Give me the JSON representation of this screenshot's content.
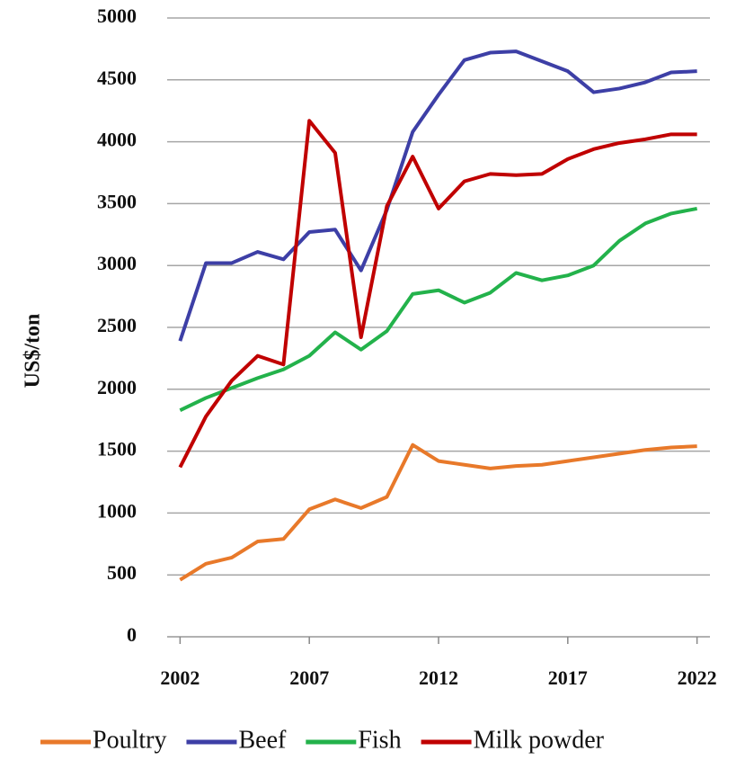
{
  "chart_data": {
    "type": "line",
    "y_label": "US$/ton",
    "x": [
      2002,
      2003,
      2004,
      2005,
      2006,
      2007,
      2008,
      2009,
      2010,
      2011,
      2012,
      2013,
      2014,
      2015,
      2016,
      2017,
      2018,
      2019,
      2020,
      2021,
      2022
    ],
    "series": [
      {
        "name": "Poultry",
        "color": "#e8792a",
        "values": [
          460,
          590,
          640,
          770,
          790,
          1030,
          1110,
          1040,
          1130,
          1550,
          1420,
          1390,
          1360,
          1380,
          1390,
          1420,
          1450,
          1480,
          1510,
          1530,
          1540
        ]
      },
      {
        "name": "Beef",
        "color": "#3d3fa6",
        "values": [
          2390,
          3020,
          3020,
          3110,
          3050,
          3270,
          3290,
          2960,
          3450,
          4080,
          4380,
          4660,
          4720,
          4730,
          4650,
          4570,
          4400,
          4430,
          4480,
          4560,
          4570
        ]
      },
      {
        "name": "Fish",
        "color": "#23b24b",
        "values": [
          1830,
          1930,
          2010,
          2090,
          2160,
          2270,
          2460,
          2320,
          2470,
          2770,
          2800,
          2700,
          2780,
          2940,
          2880,
          2920,
          3000,
          3200,
          3340,
          3420,
          3460
        ]
      },
      {
        "name": "Milk powder",
        "color": "#c00000",
        "values": [
          1370,
          1780,
          2070,
          2270,
          2200,
          4170,
          3910,
          2420,
          3480,
          3880,
          3460,
          3680,
          3740,
          3730,
          3740,
          3860,
          3940,
          3990,
          4020,
          4060,
          4060
        ]
      }
    ],
    "xlim": [
      2001.5,
      2022.5
    ],
    "xticks": [
      2002,
      2007,
      2012,
      2017,
      2022
    ],
    "ylim": [
      0,
      5000
    ],
    "yticks": [
      0,
      500,
      1000,
      1500,
      2000,
      2500,
      3000,
      3500,
      4000,
      4500,
      5000
    ],
    "grid": true,
    "legend": "bottom"
  }
}
